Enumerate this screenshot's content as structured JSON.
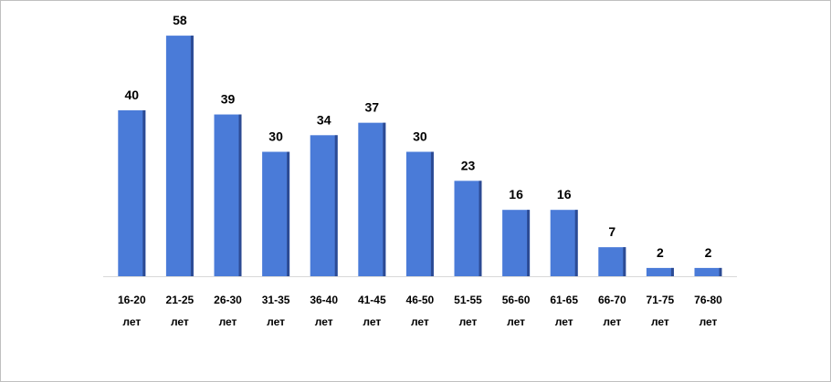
{
  "chart_data": {
    "type": "bar",
    "categories": [
      "16-20 лет",
      "21-25 лет",
      "26-30 лет",
      "31-35 лет",
      "36-40 лет",
      "41-45 лет",
      "46-50 лет",
      "51-55 лет",
      "56-60 лет",
      "61-65 лет",
      "66-70 лет",
      "71-75 лет",
      "76-80 лет"
    ],
    "values": [
      40,
      58,
      39,
      30,
      34,
      37,
      30,
      23,
      16,
      16,
      7,
      2,
      2
    ],
    "color": "#4a7bd8"
  }
}
